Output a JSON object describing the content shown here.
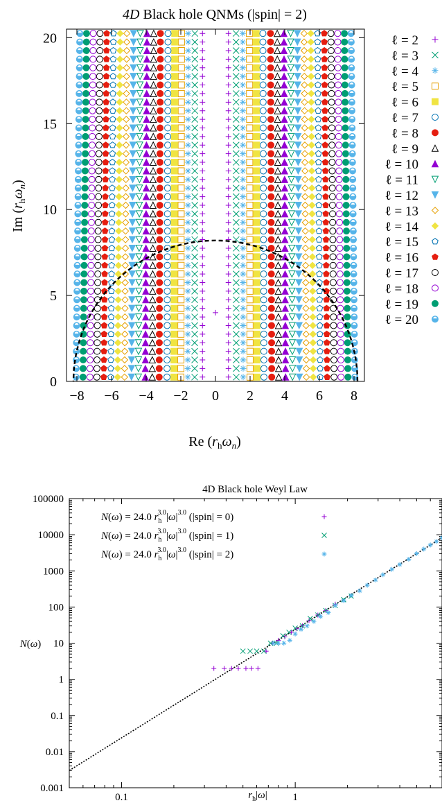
{
  "chart_data": [
    {
      "type": "scatter",
      "title": "4D Black hole QNMs (|spin| = 2)",
      "title_parts": {
        "italic": "4D",
        "rest": " Black hole QNMs (|spin| = 2)"
      },
      "xlabel": "Re (r_h ω_n)",
      "ylabel": "Im (r_h ω_n)",
      "xlim": [
        -8.6,
        8.6
      ],
      "ylim": [
        0,
        20.5
      ],
      "x_ticks": [
        -8,
        -6,
        -4,
        -2,
        0,
        2,
        4,
        6,
        8
      ],
      "x_tick_labels": [
        "−8",
        "−6",
        "−4",
        "−2",
        "0",
        "2",
        "4",
        "6",
        "8"
      ],
      "y_ticks": [
        0,
        5,
        10,
        15,
        20
      ],
      "y_tick_labels": [
        "0",
        "5",
        "10",
        "15",
        "20"
      ],
      "mode_spacing": 0.5,
      "mode_start": 0.25,
      "boundary_curve": {
        "style": "dashed",
        "radius_x": 8.2,
        "radius_y": 8.2
      },
      "legend_position": "right",
      "series": [
        {
          "name": "ℓ = 2",
          "re": 0.75,
          "slope": 0.0,
          "marker": "plus",
          "color": "#9400d3"
        },
        {
          "name": "ℓ = 3",
          "re": 1.2,
          "slope": 0.01,
          "marker": "cross",
          "color": "#009e73"
        },
        {
          "name": "ℓ = 4",
          "re": 1.6,
          "slope": 0.02,
          "marker": "star",
          "color": "#56b4e9"
        },
        {
          "name": "ℓ = 5",
          "re": 2.0,
          "slope": 0.03,
          "marker": "square",
          "color": "#e69f00"
        },
        {
          "name": "ℓ = 6",
          "re": 2.4,
          "slope": 0.04,
          "marker": "fsquare",
          "color": "#f0e442"
        },
        {
          "name": "ℓ = 7",
          "re": 2.8,
          "slope": 0.05,
          "marker": "circle",
          "color": "#0072b2"
        },
        {
          "name": "ℓ = 8",
          "re": 3.25,
          "slope": 0.06,
          "marker": "fcircle",
          "color": "#e51e10"
        },
        {
          "name": "ℓ = 9",
          "re": 3.65,
          "slope": 0.07,
          "marker": "triangle",
          "color": "#000000"
        },
        {
          "name": "ℓ = 10",
          "re": 4.05,
          "slope": 0.08,
          "marker": "ftriangle",
          "color": "#9400d3"
        },
        {
          "name": "ℓ = 11",
          "re": 4.45,
          "slope": 0.09,
          "marker": "itriangle",
          "color": "#009e73"
        },
        {
          "name": "ℓ = 12",
          "re": 4.85,
          "slope": 0.1,
          "marker": "fitriangle",
          "color": "#56b4e9"
        },
        {
          "name": "ℓ = 13",
          "re": 5.25,
          "slope": 0.11,
          "marker": "diamond",
          "color": "#e69f00"
        },
        {
          "name": "ℓ = 14",
          "re": 5.65,
          "slope": 0.12,
          "marker": "fdiamond",
          "color": "#f0e442"
        },
        {
          "name": "ℓ = 15",
          "re": 6.05,
          "slope": 0.13,
          "marker": "pentagon",
          "color": "#0072b2"
        },
        {
          "name": "ℓ = 16",
          "re": 6.45,
          "slope": 0.14,
          "marker": "fpentagon",
          "color": "#e51e10"
        },
        {
          "name": "ℓ = 17",
          "re": 6.85,
          "slope": 0.15,
          "marker": "circle",
          "color": "#000000"
        },
        {
          "name": "ℓ = 18",
          "re": 7.25,
          "slope": 0.16,
          "marker": "circle",
          "color": "#9400d3"
        },
        {
          "name": "ℓ = 19",
          "re": 7.65,
          "slope": 0.17,
          "marker": "fcircle",
          "color": "#009e73"
        },
        {
          "name": "ℓ = 20",
          "re": 8.05,
          "slope": 0.18,
          "marker": "hcircle",
          "color": "#56b4e9"
        }
      ]
    },
    {
      "type": "scatter",
      "title": "4D Black hole Weyl Law",
      "xlabel": "r_h|ω|",
      "ylabel": "N(ω)",
      "xscale": "log",
      "yscale": "log",
      "xlim": [
        0.05,
        7.0
      ],
      "ylim": [
        0.001,
        100000
      ],
      "x_ticks": [
        0.1,
        1
      ],
      "x_tick_labels": [
        "0.1",
        "1"
      ],
      "y_ticks": [
        0.001,
        0.01,
        0.1,
        1,
        10,
        100,
        1000,
        10000,
        100000
      ],
      "y_tick_labels": [
        "0.001",
        "0.01",
        "0.1",
        "1",
        "10",
        "100",
        "1000",
        "10000",
        "100000"
      ],
      "fit_line": {
        "coefficient": 24.0,
        "exponent": 3.0,
        "style": "dotted"
      },
      "legend_position": "top-left",
      "series": [
        {
          "name": "N(ω) = 24.0 r_h^3.0 |ω|^3.0 (|spin| = 0)",
          "marker": "plus",
          "color": "#9400d3",
          "x": [
            0.34,
            0.39,
            0.43,
            0.47,
            0.52,
            0.56,
            0.61,
            0.68,
            0.74,
            0.8,
            0.87,
            0.95,
            1.02,
            1.1,
            1.2,
            1.35,
            1.5,
            1.7
          ],
          "y": [
            2,
            2,
            2,
            2,
            2,
            2,
            2,
            6,
            10,
            12,
            15,
            20,
            25,
            30,
            42,
            60,
            80,
            120
          ]
        },
        {
          "name": "N(ω) = 24.0 r_h^3.0 |ω|^3.0 (|spin| = 1)",
          "marker": "cross",
          "color": "#009e73",
          "x": [
            0.5,
            0.55,
            0.6,
            0.66,
            0.72,
            0.78,
            0.85,
            0.92,
            1.0,
            1.1,
            1.22,
            1.35,
            1.5,
            1.7,
            1.9,
            2.1
          ],
          "y": [
            6,
            6,
            6,
            6,
            10,
            10,
            16,
            20,
            26,
            30,
            48,
            60,
            80,
            110,
            160,
            200
          ]
        },
        {
          "name": "N(ω) = 24.0 r_h^3.0 |ω|^3.0 (|spin| = 2)",
          "marker": "star",
          "color": "#56b4e9",
          "x": [
            0.75,
            0.8,
            0.86,
            0.93,
            1.0,
            1.08,
            1.17,
            1.28,
            1.4,
            1.55,
            1.7,
            1.9,
            2.1,
            2.35,
            2.6,
            2.9,
            3.2,
            3.6,
            4.0,
            4.5,
            5.0,
            5.5,
            6.0,
            6.5,
            7.0
          ],
          "y": [
            10,
            10,
            10,
            12,
            18,
            24,
            30,
            40,
            55,
            70,
            110,
            150,
            210,
            280,
            400,
            560,
            780,
            1100,
            1500,
            2100,
            3000,
            4000,
            5200,
            6500,
            8200
          ]
        }
      ]
    }
  ]
}
